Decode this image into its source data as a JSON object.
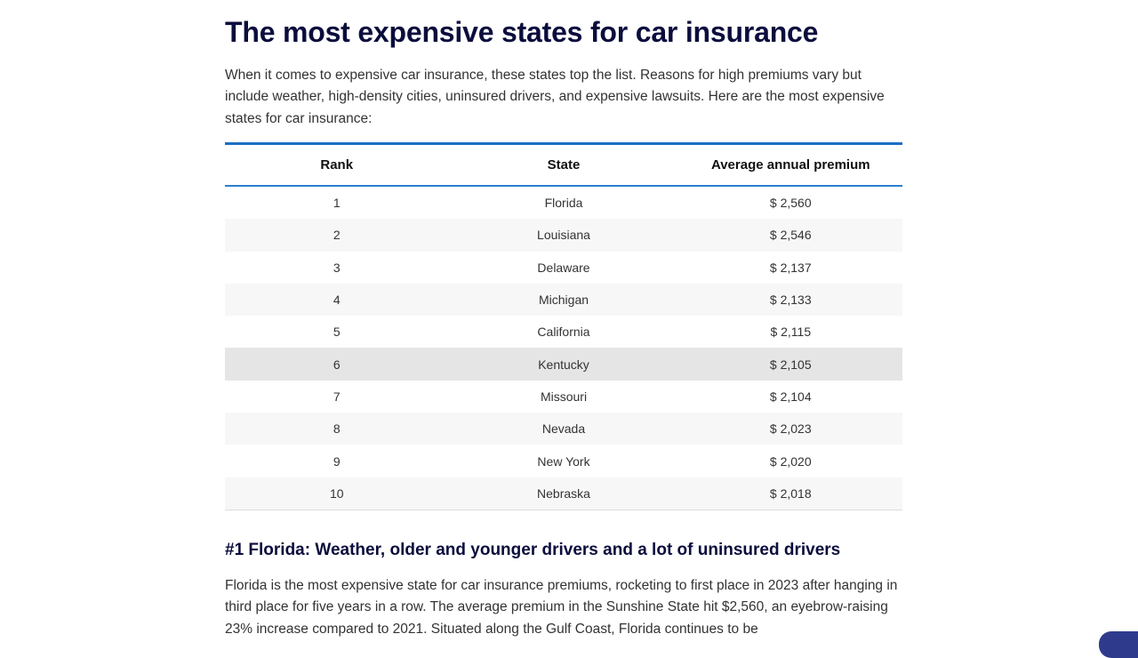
{
  "title": "The most expensive states for car insurance",
  "intro": "When it comes to expensive car insurance, these states top the list. Reasons for high premiums vary but include weather, high-density cities, uninsured drivers, and expensive lawsuits. Here are the most expensive states for car insurance:",
  "table": {
    "headers": [
      "Rank",
      "State",
      "Average annual premium"
    ],
    "rows": [
      [
        "1",
        "Florida",
        "$ 2,560"
      ],
      [
        "2",
        "Louisiana",
        "$ 2,546"
      ],
      [
        "3",
        "Delaware",
        "$ 2,137"
      ],
      [
        "4",
        "Michigan",
        "$ 2,133"
      ],
      [
        "5",
        "California",
        "$ 2,115"
      ],
      [
        "6",
        "Kentucky",
        "$ 2,105"
      ],
      [
        "7",
        "Missouri",
        "$ 2,104"
      ],
      [
        "8",
        "Nevada",
        "$ 2,023"
      ],
      [
        "9",
        "New York",
        "$ 2,020"
      ],
      [
        "10",
        "Nebraska",
        "$ 2,018"
      ]
    ]
  },
  "section": {
    "heading": "#1 Florida: Weather, older and younger drivers and a lot of uninsured drivers",
    "body": "Florida is the most expensive state for car insurance premiums, rocketing to first place in 2023 after hanging in third place for five years in a row. The average premium in the Sunshine State hit $2,560, an eyebrow-raising 23% increase compared to 2021. Situated along the Gulf Coast, Florida continues to be"
  },
  "colors": {
    "heading": "#0b0d3d",
    "table_rule": "#1a6fc4",
    "fab": "#2e3a8c"
  }
}
